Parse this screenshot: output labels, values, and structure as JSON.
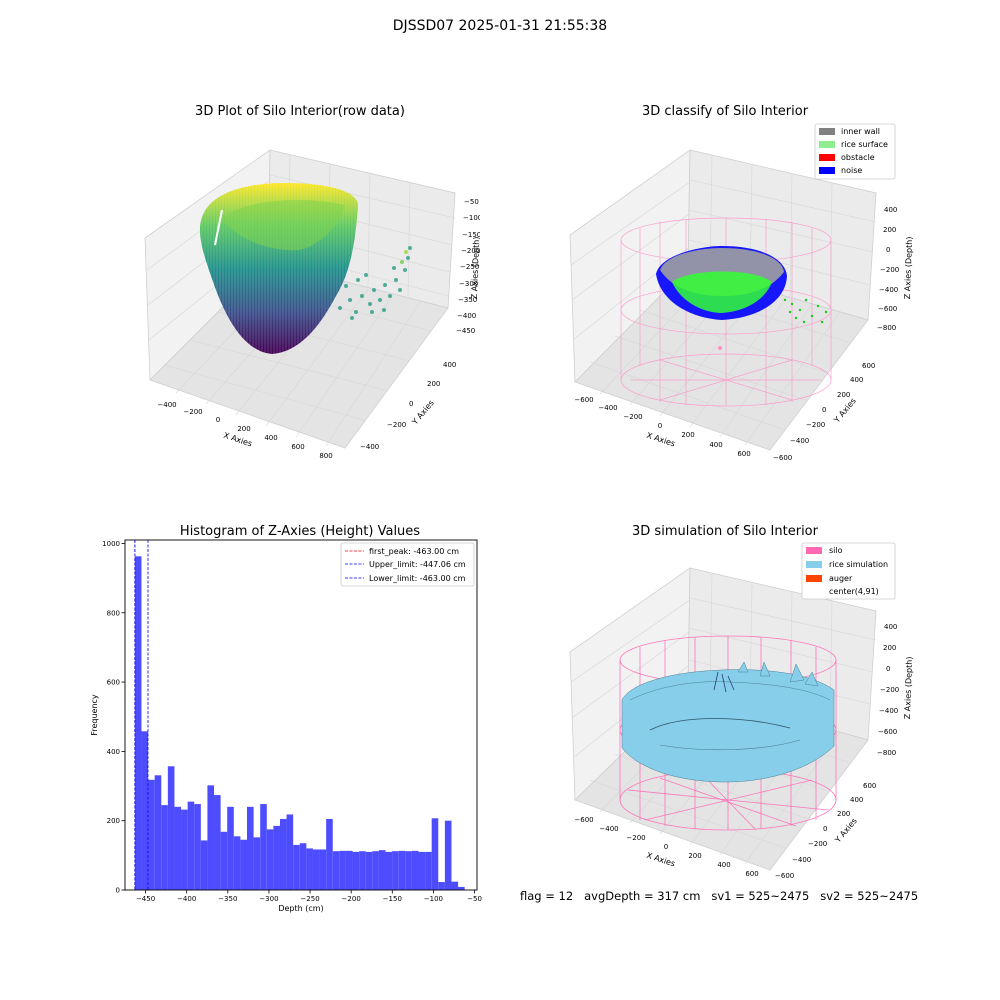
{
  "figure": {
    "suptitle": "DJSSD07 2025-01-31 21:55:38",
    "status_line": "flag = 12   avgDepth = 317 cm   sv1 = 525~2475   sv2 = 525~2475"
  },
  "chart_data": [
    {
      "type": "scatter",
      "projection": "3d",
      "title": "3D Plot of Silo Interior(row data)",
      "xlabel": "X Axies",
      "ylabel": "Y Axies",
      "zlabel": "Z Axies (Depth)",
      "xticks": [
        "−400",
        "−200",
        "0",
        "200",
        "400",
        "600",
        "800"
      ],
      "yticks": [
        "−400",
        "−200",
        "0",
        "200",
        "400"
      ],
      "zticks": [
        "−50",
        "−100",
        "−150",
        "−200",
        "−250",
        "−300",
        "−350",
        "−400",
        "−450"
      ],
      "colormap": "viridis",
      "description": "bowl-shaped point cloud from z≈-460 to z≈-50 plus scattered noise points near x≈700"
    },
    {
      "type": "scatter",
      "projection": "3d",
      "title": "3D classify of Silo Interior",
      "xlabel": "X Axies",
      "ylabel": "Y Axies",
      "zlabel": "Z Axies (Depth)",
      "xticks": [
        "−600",
        "−400",
        "−200",
        "0",
        "200",
        "400",
        "600"
      ],
      "yticks": [
        "−600",
        "−400",
        "−200",
        "0",
        "200",
        "400",
        "600"
      ],
      "zticks": [
        "400",
        "200",
        "0",
        "−200",
        "−400",
        "−600",
        "−800"
      ],
      "legend": {
        "placement": "top-right",
        "items": [
          {
            "label": "inner wall",
            "color": "#808080"
          },
          {
            "label": "rice surface",
            "color": "#90ee90"
          },
          {
            "label": "obstacle",
            "color": "#ff0000"
          },
          {
            "label": "noise",
            "color": "#0000ff"
          }
        ]
      }
    },
    {
      "type": "bar",
      "subtype": "histogram",
      "title": "Histogram of Z-Axies (Height) Values",
      "xlabel": "Depth (cm)",
      "ylabel": "Frequency",
      "xlim": [
        -475,
        -47
      ],
      "ylim": [
        0,
        1010
      ],
      "xticks": [
        -450,
        -400,
        -350,
        -300,
        -250,
        -200,
        -150,
        -100,
        -50
      ],
      "yticks": [
        0,
        200,
        400,
        600,
        800,
        1000
      ],
      "bar_color": "#4d4dff",
      "bin_start": -463.0,
      "bin_width": 8.02,
      "values": [
        963,
        458,
        318,
        331,
        245,
        357,
        240,
        232,
        255,
        248,
        143,
        302,
        274,
        168,
        240,
        155,
        145,
        240,
        152,
        248,
        175,
        185,
        205,
        218,
        130,
        135,
        120,
        117,
        117,
        205,
        112,
        113,
        113,
        110,
        112,
        110,
        112,
        115,
        110,
        112,
        113,
        112,
        113,
        110,
        110,
        207,
        23,
        200,
        24,
        9
      ],
      "vlines": [
        {
          "label": "first_peak: -463.00 cm",
          "x": -463.0,
          "color": "#ff0000"
        },
        {
          "label": "Upper_limit: -447.06 cm",
          "x": -447.06,
          "color": "#0000ff"
        },
        {
          "label": "Lower_limit: -463.00 cm",
          "x": -463.0,
          "color": "#0000ff"
        }
      ],
      "legend_placement": "top-right",
      "grid": false
    },
    {
      "type": "surface",
      "projection": "3d",
      "title": "3D simulation of Silo Interior",
      "xlabel": "X Axies",
      "ylabel": "Y Axies",
      "zlabel": "Z Axies (Depth)",
      "xticks": [
        "−600",
        "−400",
        "−200",
        "0",
        "200",
        "400",
        "600"
      ],
      "yticks": [
        "−600",
        "−400",
        "−200",
        "0",
        "200",
        "400",
        "600"
      ],
      "zticks": [
        "400",
        "200",
        "0",
        "−200",
        "−400",
        "−600",
        "−800"
      ],
      "legend": {
        "placement": "top-right",
        "items": [
          {
            "label": "silo",
            "color": "#ff69b4"
          },
          {
            "label": "rice simulation",
            "color": "#87ceeb"
          },
          {
            "label": "auger",
            "color": "#ff4500"
          },
          {
            "label": "center(4,91)",
            "color": "#ffffff"
          }
        ]
      }
    }
  ]
}
